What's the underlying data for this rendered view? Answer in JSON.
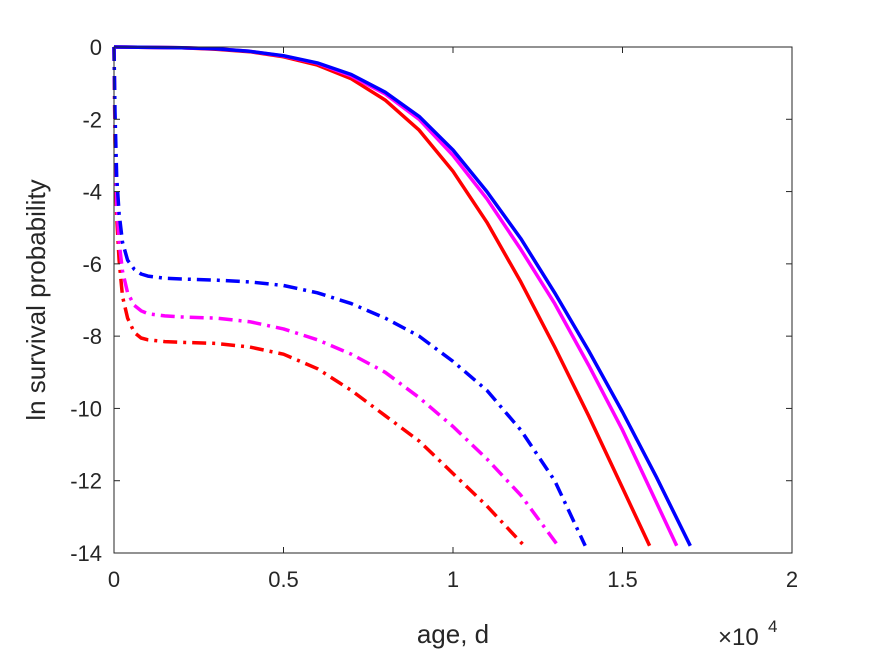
{
  "chart_data": {
    "type": "line",
    "title": "",
    "xlabel": "age, d",
    "ylabel": "ln survival probability",
    "x_exponent_label": {
      "base": "×10",
      "exponent": "4"
    },
    "xlim": [
      0,
      20000
    ],
    "ylim": [
      -14,
      0
    ],
    "x_ticks": [
      0,
      5000,
      10000,
      15000,
      20000
    ],
    "x_tick_labels": [
      "0",
      "0.5",
      "1",
      "1.5",
      "2"
    ],
    "y_ticks": [
      0,
      -2,
      -4,
      -6,
      -8,
      -10,
      -12,
      -14
    ],
    "y_tick_labels": [
      "0",
      "-2",
      "-4",
      "-6",
      "-8",
      "-10",
      "-12",
      "-14"
    ],
    "grid": false,
    "box": true,
    "series": [
      {
        "color": "#ff0000",
        "style": "solid",
        "x": [
          0,
          2000,
          3000,
          4000,
          5000,
          6000,
          7000,
          8000,
          9000,
          10000,
          11000,
          12000,
          13000,
          14000,
          15000,
          15800
        ],
        "y": [
          0,
          -0.02,
          -0.06,
          -0.13,
          -0.27,
          -0.5,
          -0.88,
          -1.47,
          -2.3,
          -3.44,
          -4.85,
          -6.5,
          -8.3,
          -10.2,
          -12.2,
          -13.8
        ]
      },
      {
        "color": "#ff00ff",
        "style": "solid",
        "x": [
          0,
          2000,
          3000,
          4000,
          5000,
          6000,
          7000,
          8000,
          9000,
          10000,
          11000,
          12000,
          13000,
          14000,
          15000,
          16000,
          16600
        ],
        "y": [
          0,
          -0.02,
          -0.05,
          -0.12,
          -0.25,
          -0.45,
          -0.8,
          -1.3,
          -2.0,
          -3.0,
          -4.2,
          -5.6,
          -7.1,
          -8.8,
          -10.6,
          -12.6,
          -13.8
        ]
      },
      {
        "color": "#0000ff",
        "style": "solid",
        "x": [
          0,
          2000,
          3000,
          4000,
          5000,
          6000,
          7000,
          8000,
          9000,
          10000,
          11000,
          12000,
          13000,
          14000,
          15000,
          16000,
          17000
        ],
        "y": [
          0,
          -0.02,
          -0.05,
          -0.12,
          -0.24,
          -0.44,
          -0.76,
          -1.25,
          -1.92,
          -2.85,
          -4.0,
          -5.3,
          -6.8,
          -8.4,
          -10.1,
          -11.9,
          -13.8
        ]
      },
      {
        "color": "#ff0000",
        "style": "dashdot",
        "x": [
          0,
          30,
          80,
          150,
          250,
          400,
          600,
          800,
          1000,
          1500,
          2000,
          3000,
          4000,
          5000,
          6000,
          7000,
          8000,
          9000,
          10000,
          11000,
          12100
        ],
        "y": [
          0,
          -2.6,
          -4.7,
          -5.9,
          -6.9,
          -7.5,
          -7.9,
          -8.05,
          -8.1,
          -8.15,
          -8.17,
          -8.2,
          -8.3,
          -8.5,
          -8.9,
          -9.5,
          -10.2,
          -10.9,
          -11.8,
          -12.7,
          -13.8
        ]
      },
      {
        "color": "#ff00ff",
        "style": "dashdot",
        "x": [
          0,
          30,
          80,
          150,
          250,
          400,
          600,
          800,
          1000,
          1500,
          2000,
          3000,
          4000,
          5000,
          6000,
          7000,
          8000,
          9000,
          10000,
          11000,
          12000,
          13100
        ],
        "y": [
          0,
          -2.4,
          -4.3,
          -5.4,
          -6.2,
          -6.8,
          -7.15,
          -7.3,
          -7.38,
          -7.44,
          -7.47,
          -7.5,
          -7.6,
          -7.8,
          -8.1,
          -8.5,
          -9.0,
          -9.7,
          -10.5,
          -11.4,
          -12.4,
          -13.8
        ]
      },
      {
        "color": "#0000ff",
        "style": "dashdot",
        "x": [
          0,
          30,
          80,
          150,
          250,
          400,
          600,
          800,
          1000,
          1500,
          2000,
          3000,
          4000,
          5000,
          6000,
          7000,
          8000,
          9000,
          10000,
          11000,
          12000,
          13000,
          13900
        ],
        "y": [
          0,
          -1.8,
          -3.6,
          -4.6,
          -5.4,
          -5.9,
          -6.15,
          -6.28,
          -6.34,
          -6.4,
          -6.42,
          -6.45,
          -6.5,
          -6.6,
          -6.8,
          -7.1,
          -7.5,
          -8.0,
          -8.7,
          -9.5,
          -10.6,
          -12.0,
          -13.8
        ]
      }
    ]
  }
}
